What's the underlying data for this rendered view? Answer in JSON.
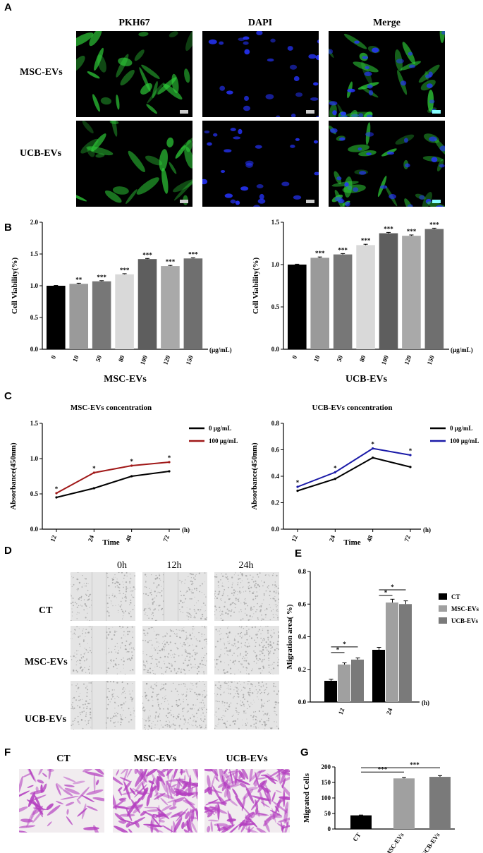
{
  "panel_labels": {
    "A": "A",
    "B": "B",
    "C": "C",
    "D": "D",
    "E": "E",
    "F": "F",
    "G": "G"
  },
  "panel_a": {
    "columns": [
      "PKH67",
      "DAPI",
      "Merge"
    ],
    "rows": [
      "MSC-EVs",
      "UCB-EVs"
    ]
  },
  "panel_d": {
    "columns": [
      "0h",
      "12h",
      "24h"
    ],
    "rows": [
      "CT",
      "MSC-EVs",
      "UCB-EVs"
    ]
  },
  "panel_f": {
    "columns": [
      "CT",
      "MSC-EVs",
      "UCB-EVs"
    ]
  },
  "colors": {
    "black": "#000000",
    "bar_10": "#9a9a9a",
    "bar_50": "#777777",
    "bar_80": "#d9d9d9",
    "bar_100": "#5e5e5e",
    "bar_120": "#a9a9a9",
    "bar_150": "#6f6f6f",
    "red": "#a01818",
    "blue": "#1a1aa8",
    "grey_light": "#a0a0a0",
    "grey_mid": "#7a7a7a",
    "fluor_green": "#2fd23a",
    "fluor_blue": "#2634ff",
    "stain": "#b440c0"
  },
  "chart_data": [
    {
      "id": "B1",
      "type": "bar",
      "categories": [
        "0",
        "10",
        "50",
        "80",
        "100",
        "120",
        "150"
      ],
      "values": [
        1.0,
        1.03,
        1.07,
        1.18,
        1.42,
        1.31,
        1.43
      ],
      "errors": [
        0.005,
        0.01,
        0.01,
        0.01,
        0.01,
        0.01,
        0.01
      ],
      "significance": [
        "",
        "**",
        "***",
        "***",
        "***",
        "***",
        "***"
      ],
      "ylim": [
        0,
        2.0
      ],
      "yticks": [
        "0.0",
        "0.5",
        "1.0",
        "1.5",
        "2.0"
      ],
      "ylabel": "Cell Viability(%)",
      "xunit": "(μg/mL)",
      "xlabel": "MSC-EVs"
    },
    {
      "id": "B2",
      "type": "bar",
      "categories": [
        "0",
        "10",
        "50",
        "80",
        "100",
        "120",
        "150"
      ],
      "values": [
        1.0,
        1.08,
        1.12,
        1.23,
        1.37,
        1.34,
        1.42
      ],
      "errors": [
        0.005,
        0.01,
        0.01,
        0.01,
        0.01,
        0.01,
        0.01
      ],
      "significance": [
        "",
        "***",
        "***",
        "***",
        "***",
        "***",
        "***"
      ],
      "ylim": [
        0,
        1.5
      ],
      "yticks": [
        "0.0",
        "0.5",
        "1.0",
        "1.5"
      ],
      "ylabel": "Cell Viability(%)",
      "xunit": "(μg/mL)",
      "xlabel": "UCB-EVs"
    },
    {
      "id": "C1",
      "type": "line",
      "title": "MSC-EVs  concentration",
      "x": [
        "12",
        "24",
        "48",
        "72"
      ],
      "series": [
        {
          "name": "0 μg/mL",
          "values": [
            0.45,
            0.58,
            0.75,
            0.82
          ]
        },
        {
          "name": "100 μg/mL",
          "values": [
            0.51,
            0.8,
            0.9,
            0.95
          ]
        }
      ],
      "significance": [
        "*",
        "*",
        "*",
        "*"
      ],
      "ylim": [
        0,
        1.5
      ],
      "yticks": [
        "0.0",
        "0.5",
        "1.0",
        "1.5"
      ],
      "ylabel": "Absorbance(450nm)",
      "xlabel": "Time",
      "xunit": "(h)"
    },
    {
      "id": "C2",
      "type": "line",
      "title": "UCB-EVs  concentration",
      "x": [
        "12",
        "24",
        "48",
        "72"
      ],
      "series": [
        {
          "name": "0 μg/mL",
          "values": [
            0.29,
            0.38,
            0.54,
            0.47
          ]
        },
        {
          "name": "100 μg/mL",
          "values": [
            0.32,
            0.43,
            0.61,
            0.56
          ]
        }
      ],
      "significance": [
        "*",
        "*",
        "*",
        "*"
      ],
      "ylim": [
        0,
        0.8
      ],
      "yticks": [
        "0.0",
        "0.2",
        "0.4",
        "0.6",
        "0.8"
      ],
      "ylabel": "Absorbance(450nm)",
      "xlabel": "Time",
      "xunit": "(h)"
    },
    {
      "id": "E",
      "type": "bar",
      "categories": [
        "12",
        "24"
      ],
      "series": [
        {
          "name": "CT",
          "values": [
            0.13,
            0.32
          ],
          "errors": [
            0.01,
            0.015
          ]
        },
        {
          "name": "MSC-EVs",
          "values": [
            0.23,
            0.61
          ],
          "errors": [
            0.01,
            0.02
          ]
        },
        {
          "name": "UCB-EVs",
          "values": [
            0.26,
            0.6
          ],
          "errors": [
            0.01,
            0.02
          ]
        }
      ],
      "significance": [
        "*",
        "*",
        "*",
        "*"
      ],
      "ylim": [
        0,
        0.8
      ],
      "yticks": [
        "0.0",
        "0.2",
        "0.4",
        "0.6",
        "0.8"
      ],
      "ylabel": "Migration area( %)",
      "xunit": "(h)",
      "legend": "top-right"
    },
    {
      "id": "G",
      "type": "bar",
      "categories": [
        "CT",
        "MSC-EVs",
        "UCB-EVs"
      ],
      "values": [
        44,
        163,
        168
      ],
      "errors": [
        1,
        3,
        4
      ],
      "significance": [
        "***",
        "***"
      ],
      "ylim": [
        0,
        200
      ],
      "yticks": [
        "0",
        "50",
        "100",
        "150",
        "200"
      ],
      "ylabel": "Migrated Cells"
    }
  ]
}
